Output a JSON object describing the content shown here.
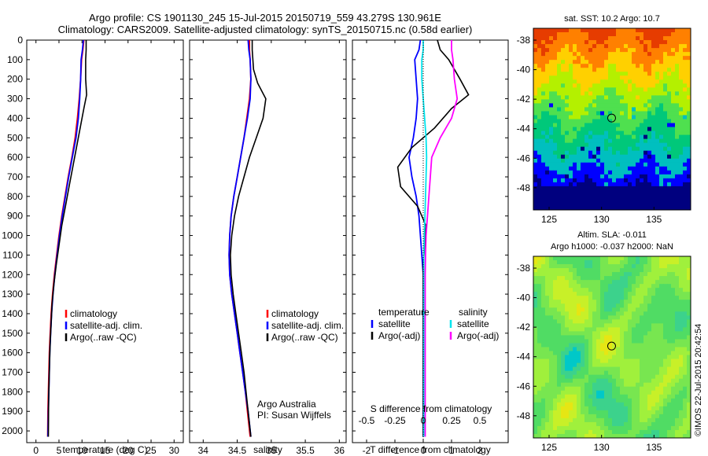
{
  "header": {
    "line1": "Argo profile: CS 1901130_245 15-Jul-2015 20150719_559 43.279S 130.961E",
    "line2": "Climatology: CARS2009. Satellite-adjusted climatology: synTS_20150715.nc (0.58d earlier)"
  },
  "colors": {
    "climatology": "#ff0000",
    "satellite": "#0000ff",
    "argo": "#000000",
    "sal_satellite": "#00e5ee",
    "sal_argo": "#ff00ff"
  },
  "chart_data": [
    {
      "type": "line",
      "id": "temperature",
      "xlabel": "temperature (deg C)",
      "xlim": [
        -2,
        32
      ],
      "xticks": [
        0,
        5,
        10,
        15,
        20,
        25,
        30
      ],
      "ylim": [
        2060,
        0
      ],
      "yticks": [
        0,
        100,
        200,
        300,
        400,
        500,
        600,
        700,
        800,
        900,
        1000,
        1100,
        1200,
        1300,
        1400,
        1500,
        1600,
        1700,
        1800,
        1900,
        2000
      ],
      "legend": [
        "climatology",
        "satellite-adj. clim.",
        "Argo(..raw -QC)"
      ],
      "series": [
        {
          "name": "climatology",
          "color_key": "climatology",
          "x": [
            10.4,
            10.2,
            9.9,
            9.7,
            9.4,
            9.0,
            8.5,
            7.8,
            7.0,
            6.3,
            5.6,
            5.0,
            4.5,
            4.0,
            3.6,
            3.3,
            3.1,
            2.9,
            2.8,
            2.7,
            2.6,
            2.55
          ],
          "y": [
            0,
            50,
            100,
            200,
            300,
            400,
            500,
            600,
            700,
            800,
            900,
            1000,
            1100,
            1200,
            1300,
            1400,
            1500,
            1600,
            1700,
            1800,
            1900,
            2030
          ]
        },
        {
          "name": "satellite-adj. clim.",
          "color_key": "satellite",
          "x": [
            10.3,
            10.1,
            9.8,
            9.7,
            9.5,
            9.2,
            8.7,
            7.9,
            7.1,
            6.4,
            5.7,
            5.1,
            4.6,
            4.1,
            3.7,
            3.4,
            3.2,
            3.0,
            2.9,
            2.8,
            2.7,
            2.6
          ],
          "y": [
            0,
            50,
            100,
            200,
            300,
            400,
            500,
            600,
            700,
            800,
            900,
            1000,
            1100,
            1200,
            1300,
            1400,
            1500,
            1600,
            1700,
            1800,
            1900,
            2030
          ]
        },
        {
          "name": "Argo(..raw -QC)",
          "color_key": "argo",
          "x": [
            10.9,
            10.9,
            10.8,
            10.8,
            11.0,
            10.4,
            9.6,
            8.8,
            8.0,
            7.2,
            6.4,
            5.6,
            5.0,
            4.4,
            3.9,
            3.5,
            3.3,
            3.1,
            2.95,
            2.85,
            2.75,
            2.7
          ],
          "y": [
            0,
            50,
            100,
            200,
            280,
            350,
            450,
            550,
            650,
            750,
            850,
            950,
            1050,
            1150,
            1250,
            1350,
            1450,
            1550,
            1650,
            1750,
            1850,
            2030
          ]
        }
      ]
    },
    {
      "type": "line",
      "id": "salinity",
      "xlabel": "salinity",
      "xlim": [
        33.8,
        36.1
      ],
      "xticks": [
        34,
        34.5,
        35,
        35.5,
        36
      ],
      "ylim": [
        2060,
        0
      ],
      "legend": [
        "climatology",
        "satellite-adj. clim.",
        "Argo(..raw -QC)"
      ],
      "annotation": [
        "Argo Australia",
        "PI: Susan Wijffels"
      ],
      "series": [
        {
          "name": "climatology",
          "color_key": "climatology",
          "x": [
            34.68,
            34.68,
            34.69,
            34.7,
            34.68,
            34.64,
            34.6,
            34.55,
            34.5,
            34.45,
            34.41,
            34.39,
            34.38,
            34.39,
            34.42,
            34.46,
            34.5,
            34.54,
            34.58,
            34.62,
            34.65,
            34.69
          ],
          "y": [
            0,
            50,
            100,
            200,
            300,
            400,
            500,
            600,
            700,
            800,
            900,
            1000,
            1100,
            1200,
            1300,
            1400,
            1500,
            1600,
            1700,
            1800,
            1900,
            2030
          ]
        },
        {
          "name": "satellite-adj. clim.",
          "color_key": "satellite",
          "x": [
            34.66,
            34.67,
            34.69,
            34.7,
            34.69,
            34.65,
            34.6,
            34.55,
            34.5,
            34.45,
            34.41,
            34.39,
            34.38,
            34.39,
            34.42,
            34.46,
            34.5,
            34.54,
            34.58,
            34.62,
            34.66,
            34.7
          ],
          "y": [
            0,
            50,
            100,
            200,
            300,
            400,
            500,
            600,
            700,
            800,
            900,
            1000,
            1100,
            1200,
            1300,
            1400,
            1500,
            1600,
            1700,
            1800,
            1900,
            2030
          ]
        },
        {
          "name": "Argo(..raw -QC)",
          "color_key": "argo",
          "x": [
            34.72,
            34.72,
            34.74,
            34.8,
            34.92,
            34.88,
            34.78,
            34.68,
            34.6,
            34.52,
            34.46,
            34.42,
            34.4,
            34.41,
            34.44,
            34.48,
            34.52,
            34.56,
            34.6,
            34.63,
            34.66,
            34.7
          ],
          "y": [
            0,
            50,
            150,
            220,
            300,
            400,
            500,
            600,
            700,
            800,
            900,
            1000,
            1100,
            1200,
            1300,
            1400,
            1500,
            1600,
            1700,
            1800,
            1900,
            2030
          ]
        }
      ]
    },
    {
      "type": "line",
      "id": "difference",
      "xlabel": "T difference from climatology",
      "xlabel_top": "S difference from climatology",
      "xlim": [
        -2.5,
        3.0
      ],
      "xticks": [
        -2,
        -1,
        0,
        1,
        2
      ],
      "xticks_top": [
        -0.5,
        -0.25,
        0,
        0.25,
        0.5
      ],
      "xticks_top_labels": [
        "-0.5",
        "-0.25",
        "0",
        "0.25",
        "0.5"
      ],
      "ylim": [
        2060,
        0
      ],
      "legend_headers": [
        "temperature",
        "salinity"
      ],
      "legend": [
        "satellite",
        "Argo(-adj)",
        "satellite",
        "Argo(-adj)"
      ],
      "series": [
        {
          "name": "satellite",
          "color_key": "satellite",
          "x": [
            -0.1,
            -0.15,
            -0.3,
            -0.25,
            -0.2,
            -0.25,
            -0.35,
            -0.5,
            -0.4,
            -0.25,
            -0.15,
            -0.1,
            -0.05,
            0.0,
            0.0,
            0.0,
            0.0,
            0.0,
            0.0,
            0.0,
            0.0,
            0.0
          ],
          "y": [
            0,
            50,
            100,
            200,
            300,
            400,
            500,
            600,
            700,
            800,
            900,
            1000,
            1100,
            1200,
            1300,
            1400,
            1500,
            1600,
            1700,
            1800,
            1900,
            2030
          ]
        },
        {
          "name": "Argo(-adj)",
          "color_key": "argo",
          "x": [
            0.5,
            0.6,
            0.9,
            1.3,
            1.6,
            1.0,
            0.4,
            -0.4,
            -0.9,
            -0.8,
            -0.2,
            0.1,
            0.05,
            0.0,
            0.0,
            0.0,
            0.0,
            0.0,
            0.0,
            0.0,
            0.0,
            0.0
          ],
          "y": [
            0,
            50,
            100,
            200,
            280,
            350,
            450,
            550,
            650,
            750,
            850,
            950,
            1050,
            1150,
            1250,
            1350,
            1450,
            1550,
            1650,
            1750,
            1850,
            2030
          ]
        },
        {
          "name": "satellite",
          "color_key": "sal_satellite",
          "x": [
            0.0,
            0.0,
            -0.05,
            -0.05,
            0.0,
            0.05,
            0.1,
            0.12,
            0.1,
            0.08,
            0.06,
            0.04,
            0.02,
            0.02,
            0.02,
            0.02,
            0.02,
            0.02,
            0.02,
            0.02,
            0.02,
            0.02
          ],
          "y": [
            0,
            50,
            100,
            200,
            300,
            400,
            500,
            600,
            700,
            800,
            900,
            1000,
            1100,
            1200,
            1300,
            1400,
            1500,
            1600,
            1700,
            1800,
            1900,
            2030
          ]
        },
        {
          "name": "Argo(-adj)",
          "color_key": "sal_argo",
          "x": [
            1.0,
            1.0,
            1.05,
            1.1,
            1.2,
            1.0,
            0.6,
            0.3,
            0.25,
            0.2,
            0.15,
            0.1,
            0.08,
            0.07,
            0.07,
            0.07,
            0.07,
            0.07,
            0.07,
            0.07,
            0.07,
            0.07
          ],
          "y": [
            0,
            50,
            100,
            200,
            300,
            400,
            500,
            600,
            700,
            800,
            900,
            1000,
            1100,
            1200,
            1300,
            1400,
            1500,
            1600,
            1700,
            1800,
            1900,
            2030
          ]
        }
      ]
    },
    {
      "type": "heatmap",
      "id": "sst-map",
      "title": "sat. SST: 10.2 Argo: 10.7",
      "xlim": [
        123.5,
        138.5
      ],
      "ylim": [
        -49.5,
        -37.2
      ],
      "xticks": [
        125,
        130,
        135
      ],
      "yticks": [
        -38,
        -40,
        -42,
        -44,
        -46,
        -48
      ],
      "marker": {
        "lon": 130.961,
        "lat": -43.279
      },
      "colorscale": [
        "#00007f",
        "#0000ff",
        "#00bfbf",
        "#00c87a",
        "#4fe04f",
        "#b4f000",
        "#ffd000",
        "#ff8000",
        "#e63c00"
      ]
    },
    {
      "type": "heatmap",
      "id": "sla-map",
      "title": [
        "Altim. SLA: -0.011",
        "Argo h1000: -0.037 h2000: NaN"
      ],
      "xlim": [
        123.5,
        138.5
      ],
      "ylim": [
        -49.5,
        -37.2
      ],
      "xticks": [
        125,
        130,
        135
      ],
      "yticks": [
        -38,
        -40,
        -42,
        -44,
        -46,
        -48
      ],
      "marker": {
        "lon": 130.961,
        "lat": -43.279
      },
      "colorscale": [
        "#00c8c8",
        "#3cd28c",
        "#50dc64",
        "#78e650",
        "#a0f03c",
        "#c8f028",
        "#e6e614"
      ]
    }
  ],
  "stamp": "©IMOS 22-Jul-2015 20:42:54"
}
